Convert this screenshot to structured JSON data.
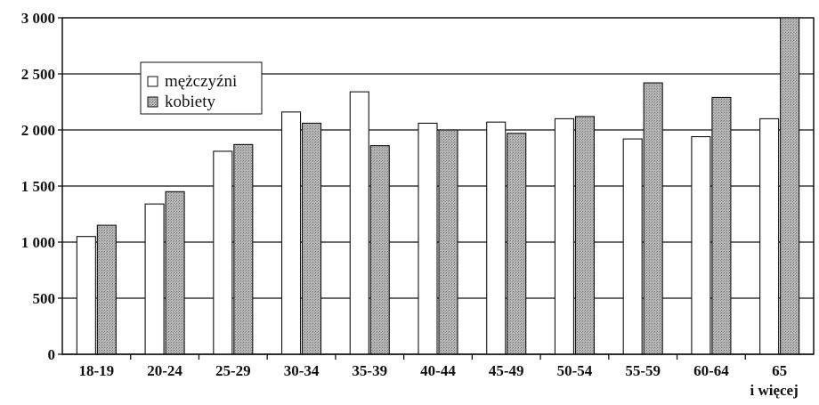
{
  "chart_data": {
    "type": "bar",
    "categories": [
      "18-19",
      "20-24",
      "25-29",
      "30-34",
      "35-39",
      "40-44",
      "45-49",
      "50-54",
      "55-59",
      "60-64",
      "65"
    ],
    "category_second_line": {
      "10": "i więcej"
    },
    "series": [
      {
        "name": "mężczyźni",
        "color": "#ffffff",
        "values": [
          1050,
          1340,
          1810,
          2160,
          2340,
          2060,
          2070,
          2100,
          1920,
          1940,
          2100
        ]
      },
      {
        "name": "kobiety",
        "color": "#a9a9a9",
        "values": [
          1150,
          1450,
          1870,
          2060,
          1860,
          2000,
          1970,
          2120,
          2420,
          2290,
          3000
        ]
      }
    ],
    "yticks": [
      "0",
      "500",
      "1 000",
      "1 500",
      "2 000",
      "2 500",
      "3 000"
    ],
    "ylim": [
      0,
      3000
    ],
    "grid": true,
    "legend": "top-left",
    "title": "",
    "xlabel": "",
    "ylabel": ""
  }
}
